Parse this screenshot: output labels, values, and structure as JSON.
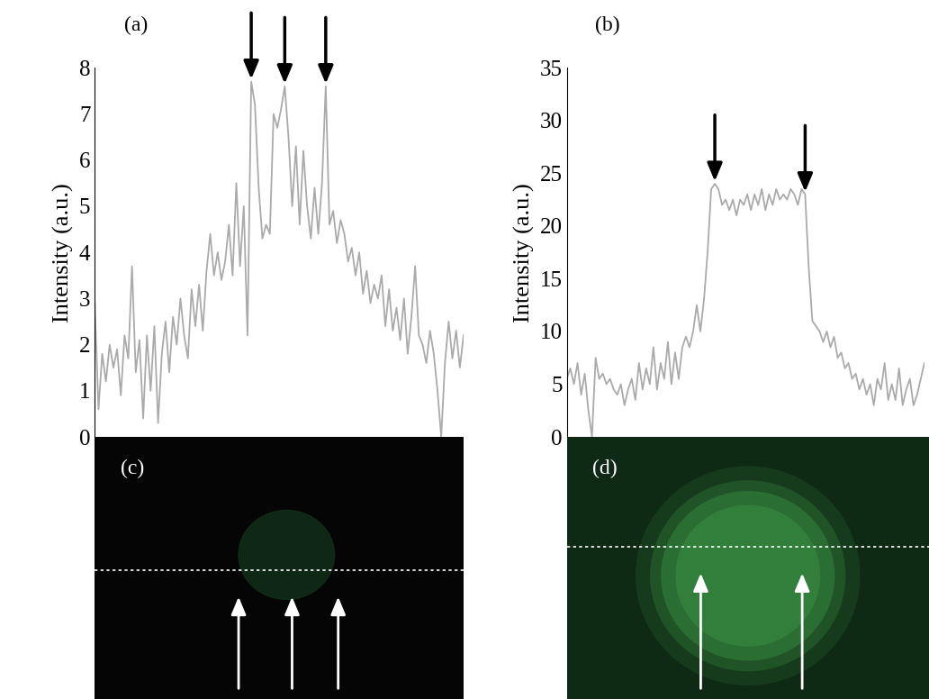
{
  "chart_data": [
    {
      "type": "line",
      "title": "(a)",
      "ylabel": "Intensity (a.u.)",
      "color": "#aaaaaa",
      "ylim": [
        0,
        8
      ],
      "yticks": [
        0,
        1,
        2,
        3,
        4,
        5,
        6,
        7,
        8
      ],
      "tick_labels": "y",
      "values": [
        2.9,
        0.6,
        1.8,
        1.2,
        2.0,
        1.5,
        1.9,
        0.9,
        2.2,
        1.7,
        3.7,
        1.4,
        2.1,
        0.4,
        2.2,
        1.0,
        2.4,
        0.3,
        1.8,
        2.5,
        1.4,
        2.6,
        2.0,
        3.0,
        2.2,
        1.7,
        3.2,
        2.4,
        3.3,
        2.3,
        3.6,
        4.4,
        3.5,
        4.0,
        3.4,
        3.8,
        4.6,
        3.5,
        5.5,
        3.7,
        5.0,
        2.2,
        7.7,
        7.2,
        5.4,
        4.3,
        4.6,
        4.4,
        7.0,
        6.7,
        7.1,
        7.6,
        6.5,
        5.0,
        6.3,
        4.6,
        6.2,
        5.0,
        4.3,
        5.4,
        4.4,
        5.5,
        7.6,
        4.6,
        4.9,
        4.2,
        4.7,
        4.4,
        3.8,
        4.1,
        3.5,
        4.0,
        3.1,
        3.6,
        2.9,
        3.3,
        3.0,
        3.5,
        2.4,
        3.2,
        2.3,
        2.8,
        2.1,
        3.0,
        1.8,
        2.6,
        3.7,
        2.2,
        2.0,
        1.6,
        2.3,
        1.8,
        1.0,
        0.0,
        1.6,
        2.5,
        1.7,
        2.3,
        1.5,
        2.2
      ]
    },
    {
      "type": "line",
      "title": "(b)",
      "ylabel": "Intensity (a.u.)",
      "color": "#aaaaaa",
      "ylim": [
        0,
        35
      ],
      "yticks": [
        0,
        5,
        10,
        15,
        20,
        25,
        30,
        35
      ],
      "tick_labels": "y",
      "values": [
        5.5,
        6.5,
        5.0,
        7.0,
        4.0,
        6.0,
        2.5,
        0.0,
        7.5,
        5.5,
        6.0,
        5.0,
        5.5,
        4.5,
        4.0,
        5.0,
        3.0,
        4.5,
        5.5,
        3.5,
        7.0,
        4.5,
        6.5,
        5.0,
        8.5,
        4.5,
        7.0,
        5.5,
        9.0,
        5.0,
        8.0,
        5.5,
        8.5,
        9.5,
        8.5,
        10.0,
        12.5,
        10.0,
        13.0,
        17.5,
        23.5,
        24.0,
        23.5,
        22.0,
        22.5,
        21.5,
        22.5,
        21.0,
        22.5,
        22.0,
        23.0,
        21.5,
        23.0,
        22.0,
        23.5,
        21.5,
        23.0,
        22.0,
        23.5,
        22.5,
        23.0,
        22.5,
        23.5,
        23.0,
        22.0,
        23.5,
        23.0,
        16.0,
        11.0,
        10.5,
        10.0,
        9.0,
        10.0,
        8.5,
        9.5,
        7.5,
        8.0,
        6.5,
        7.0,
        5.5,
        6.0,
        4.5,
        5.5,
        4.0,
        5.0,
        3.0,
        5.5,
        4.5,
        7.0,
        3.5,
        5.0,
        3.5,
        6.5,
        3.0,
        4.5,
        5.5,
        3.0,
        4.0,
        5.5,
        7.0
      ]
    }
  ],
  "images": [
    {
      "label": "(c)"
    },
    {
      "label": "(d)"
    }
  ]
}
